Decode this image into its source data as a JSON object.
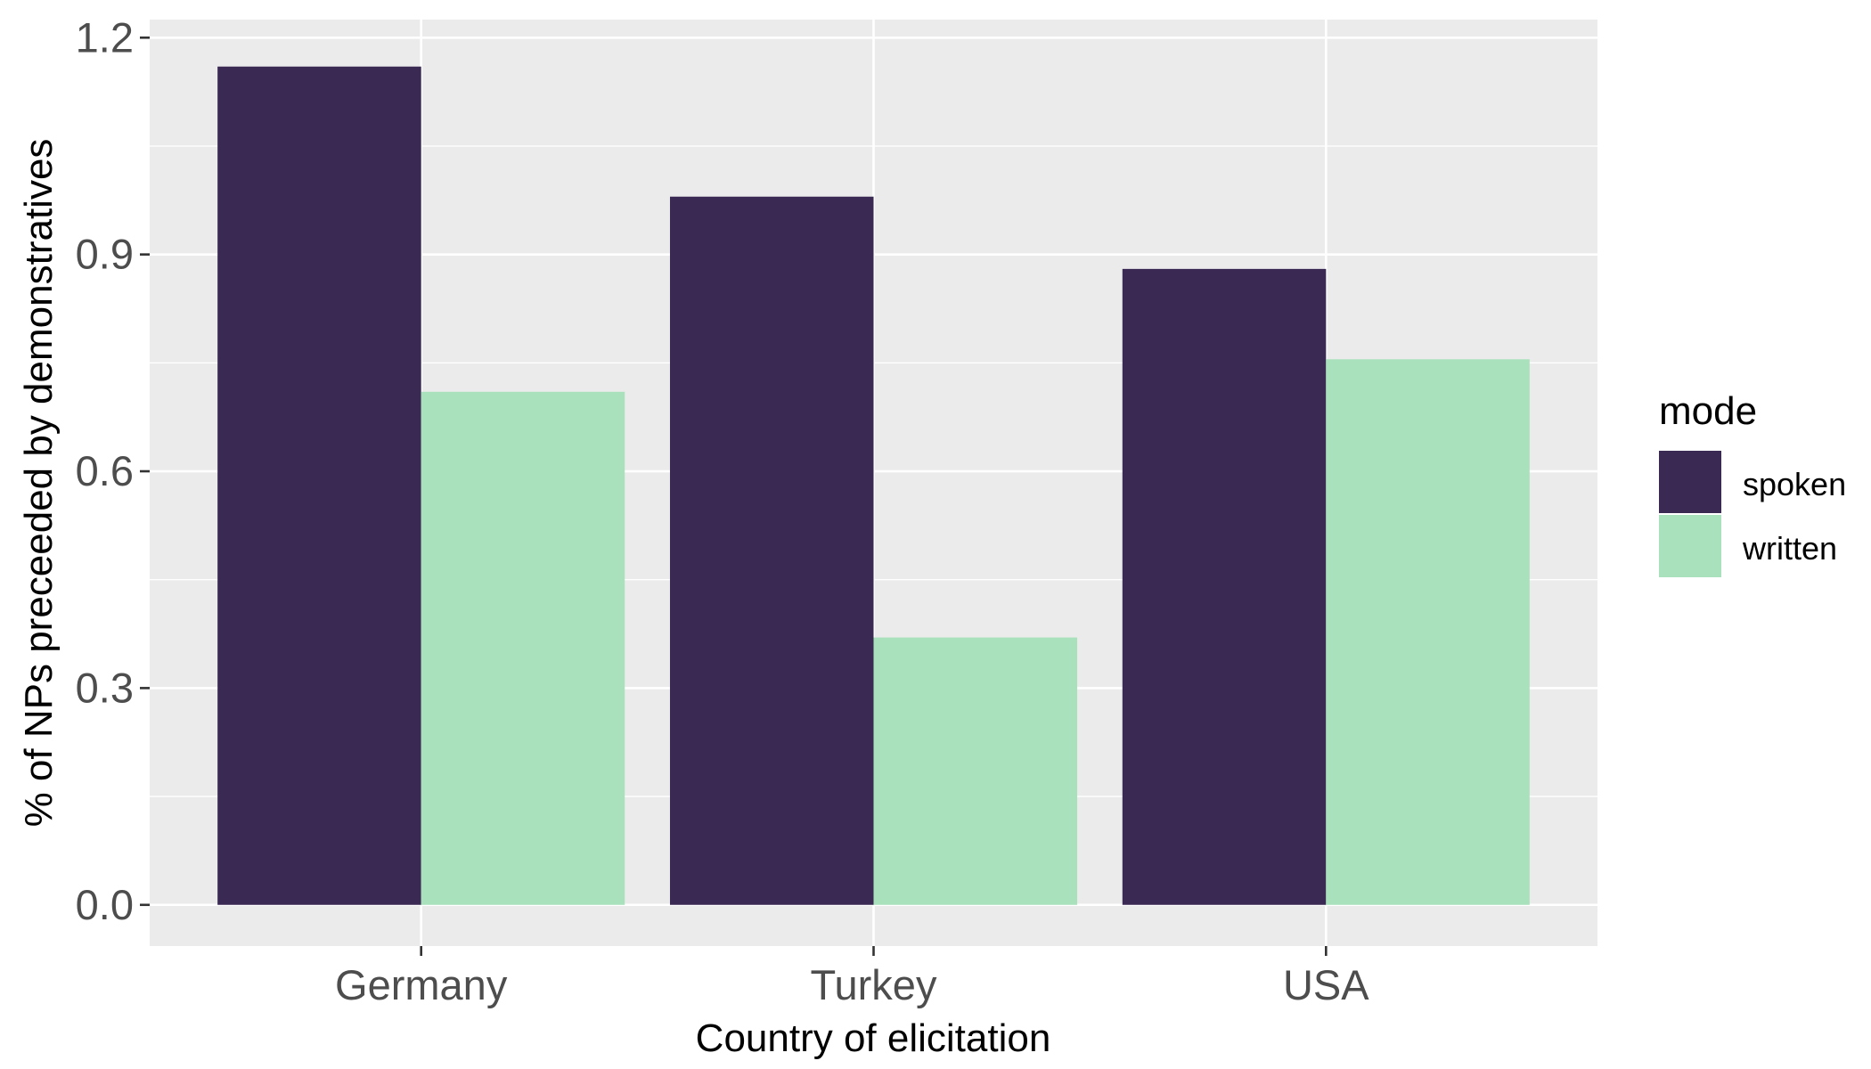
{
  "chart_data": {
    "type": "bar",
    "categories": [
      "Germany",
      "Turkey",
      "USA"
    ],
    "series": [
      {
        "name": "spoken",
        "values": [
          1.16,
          0.98,
          0.88
        ],
        "color": "#3A2A53"
      },
      {
        "name": "written",
        "values": [
          0.71,
          0.37,
          0.755
        ],
        "color": "#A9E1BC"
      }
    ],
    "xlabel": "Country of elicitation",
    "ylabel": "% of NPs preceeded by demonstratives",
    "ylim": [
      -0.057,
      1.225
    ],
    "yticks": [
      "0.0",
      "0.3",
      "0.6",
      "0.9",
      "1.2"
    ],
    "ytick_values": [
      0.0,
      0.3,
      0.6,
      0.9,
      1.2
    ],
    "grid": true,
    "legend": {
      "title": "mode",
      "position": "right"
    },
    "panel_color": "#EBEBEB"
  }
}
